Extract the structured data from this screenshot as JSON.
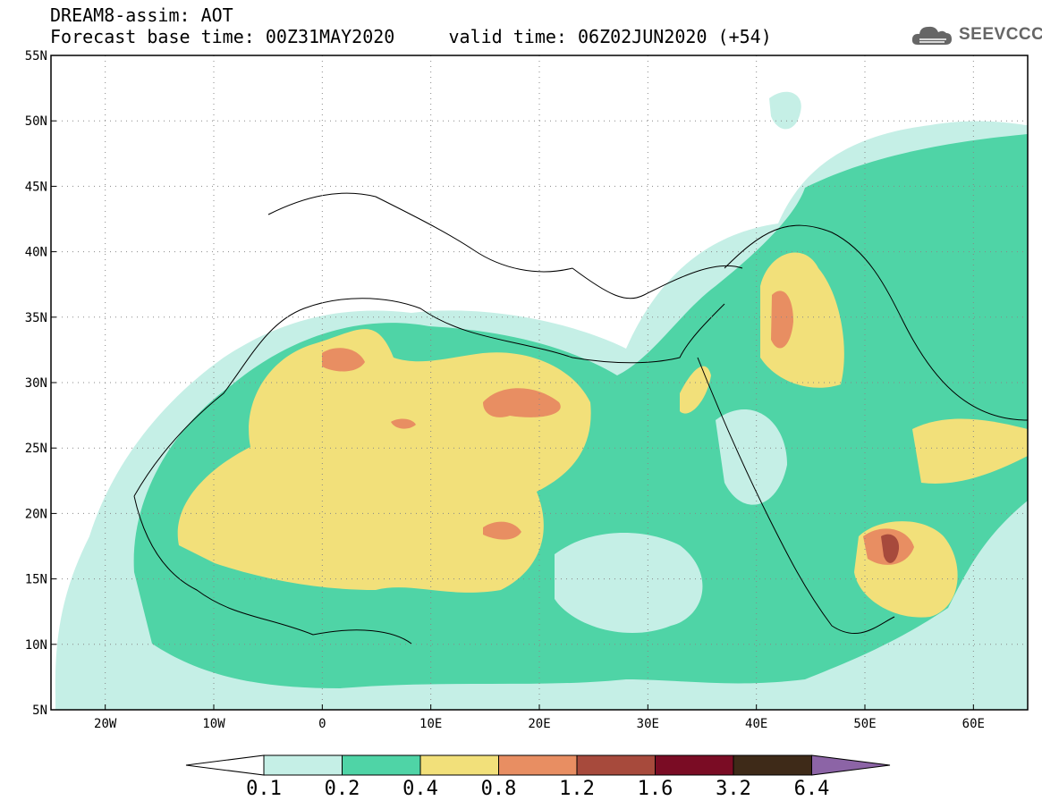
{
  "header": {
    "title_line1": "DREAM8-assim: AOT",
    "title_line2": "Forecast base time: 00Z31MAY2020     valid time: 06Z02JUN2020 (+54)",
    "logo_text": "SEEVCCC"
  },
  "map": {
    "lon_range": [
      -25,
      65
    ],
    "lat_range": [
      5,
      55
    ],
    "lon_ticks": [
      -20,
      -10,
      0,
      10,
      20,
      30,
      40,
      50,
      60
    ],
    "lon_tick_labels": [
      "20W",
      "10W",
      "0",
      "10E",
      "20E",
      "30E",
      "40E",
      "50E",
      "60E"
    ],
    "lat_ticks": [
      5,
      10,
      15,
      20,
      25,
      30,
      35,
      40,
      45,
      50,
      55
    ],
    "lat_tick_labels": [
      "5N",
      "10N",
      "15N",
      "20N",
      "25N",
      "30N",
      "35N",
      "40N",
      "45N",
      "50N",
      "55N"
    ],
    "gridlines": "dotted"
  },
  "colorbar": {
    "labels": [
      "0.1",
      "0.2",
      "0.4",
      "0.8",
      "1.2",
      "1.6",
      "3.2",
      "6.4"
    ],
    "colors": [
      "#ffffff",
      "#c5efe6",
      "#4fd4a6",
      "#f2e07a",
      "#e88e62",
      "#a74a3c",
      "#7a0c24",
      "#3e2a18",
      "#8c64a6"
    ]
  }
}
